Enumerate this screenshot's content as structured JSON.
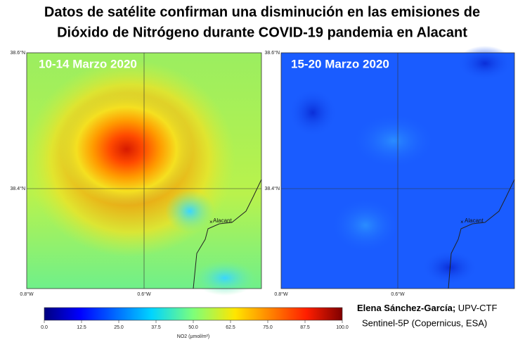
{
  "title": {
    "line1": "Datos de satélite confirman una disminución en las emisiones de",
    "line2": "Dióxido de Nitrógeno durante COVID-19 pandemia en Alacant"
  },
  "panels": [
    {
      "label": "10-14 Marzo 2020",
      "lat_top": "38.6°N",
      "lat_mid": "38.4°N",
      "lon_left": "0.8°W",
      "lon_mid": "0.6°W",
      "place": "Alacant"
    },
    {
      "label": "15-20 Marzo 2020",
      "lat_top": "38.6°N",
      "lat_mid": "38.4°N",
      "lon_left": "0.8°W",
      "lon_mid": "0.6°W",
      "place": "Alacant"
    }
  ],
  "colorbar": {
    "ticks": [
      "0.0",
      "12.5",
      "25.0",
      "37.5",
      "50.0",
      "62.5",
      "75.0",
      "87.5",
      "100.0"
    ],
    "label": "NO2 (µmol/m²)"
  },
  "credit": {
    "author": "Elena Sánchez-García;",
    "affiliation": "UPV-CTF",
    "source": "Sentinel-5P (Copernicus, ESA)"
  }
}
